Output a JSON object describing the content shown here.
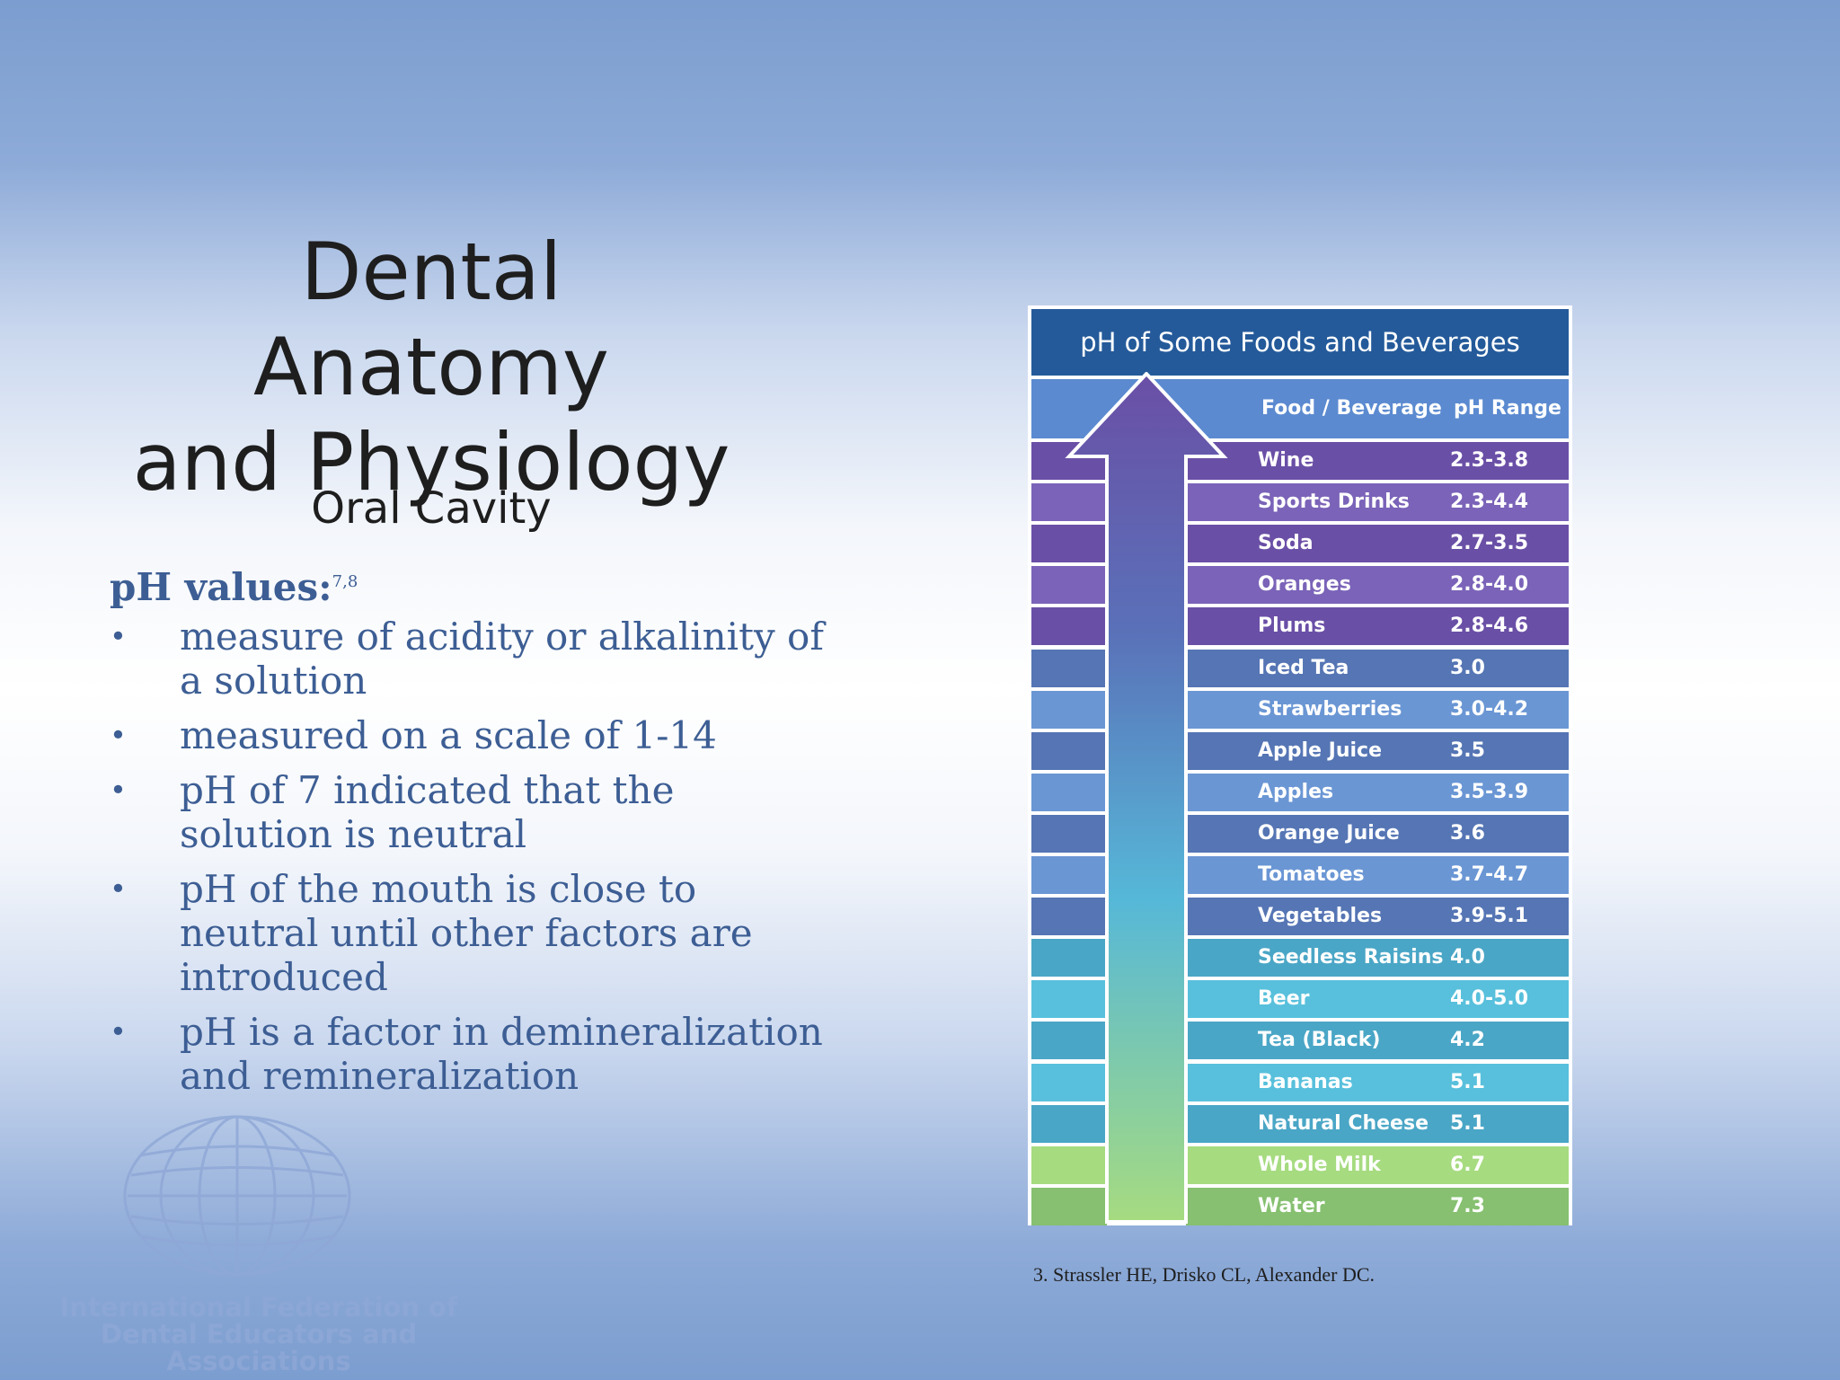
{
  "slide": {
    "title_line1": "Dental Anatomy",
    "title_line2": "and Physiology",
    "subtitle": "Oral Cavity",
    "heading": "pH values:",
    "heading_ref": "7,8",
    "bullets": [
      "measure of acidity or alkalinity of a solution",
      "measured on a scale of 1-14",
      "pH of 7 indicated that the solution is neutral",
      "pH of the mouth is close to neutral until other factors are introduced",
      "pH is a factor in demineralization and remineralization"
    ],
    "citation": "3. Strassler HE, Drisko CL, Alexander DC."
  },
  "table": {
    "title": "pH of Some Foods and Beverages",
    "col_food": "Food / Beverage",
    "col_ph": "pH Range",
    "rows": [
      {
        "food": "Wine",
        "ph": "2.3-3.8",
        "color": "#6a4fa6"
      },
      {
        "food": "Sports Drinks",
        "ph": "2.3-4.4",
        "color": "#7a63b8"
      },
      {
        "food": "Soda",
        "ph": "2.7-3.5",
        "color": "#6a4fa6"
      },
      {
        "food": "Oranges",
        "ph": "2.8-4.0",
        "color": "#7a63b8"
      },
      {
        "food": "Plums",
        "ph": "2.8-4.6",
        "color": "#6a4fa6"
      },
      {
        "food": "Iced Tea",
        "ph": "3.0",
        "color": "#5575b4"
      },
      {
        "food": "Strawberries",
        "ph": "3.0-4.2",
        "color": "#6a96d4"
      },
      {
        "food": "Apple Juice",
        "ph": "3.5",
        "color": "#5575b4"
      },
      {
        "food": "Apples",
        "ph": "3.5-3.9",
        "color": "#6a96d4"
      },
      {
        "food": "Orange Juice",
        "ph": "3.6",
        "color": "#5575b4"
      },
      {
        "food": "Tomatoes",
        "ph": "3.7-4.7",
        "color": "#6a96d4"
      },
      {
        "food": "Vegetables",
        "ph": "3.9-5.1",
        "color": "#5575b4"
      },
      {
        "food": "Seedless Raisins",
        "ph": "4.0",
        "color": "#4aa6c6"
      },
      {
        "food": "Beer",
        "ph": "4.0-5.0",
        "color": "#58c0dc"
      },
      {
        "food": "Tea (Black)",
        "ph": "4.2",
        "color": "#4aa6c6"
      },
      {
        "food": "Bananas",
        "ph": "5.1",
        "color": "#58c0dc"
      },
      {
        "food": "Natural Cheese",
        "ph": "5.1",
        "color": "#4aa6c6"
      },
      {
        "food": "Whole Milk",
        "ph": "6.7",
        "color": "#a6db80"
      },
      {
        "food": "Water",
        "ph": "7.3",
        "color": "#86c070"
      }
    ]
  },
  "logo": {
    "line1": "International Federation of",
    "line2": "Dental Educators and Associations",
    "icon": "globe-icon"
  }
}
